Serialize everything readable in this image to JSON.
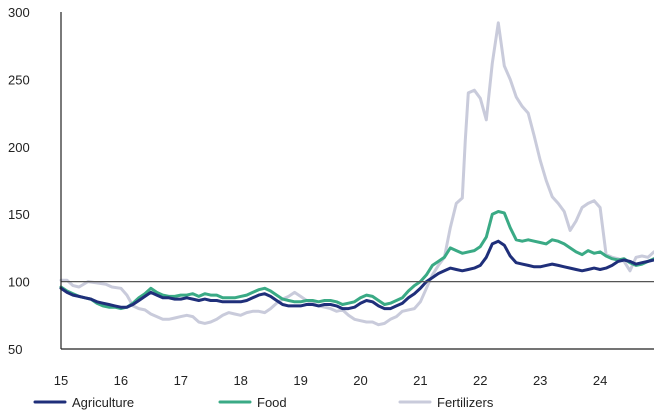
{
  "chart_data": {
    "type": "line",
    "title": "",
    "xlabel": "",
    "ylabel": "",
    "xlim": [
      15,
      24.9
    ],
    "ylim": [
      50,
      300
    ],
    "xticks": [
      15,
      16,
      17,
      18,
      19,
      20,
      21,
      22,
      23,
      24
    ],
    "xtick_labels": [
      "15",
      "16",
      "17",
      "18",
      "19",
      "20",
      "21",
      "22",
      "23",
      "24"
    ],
    "yticks": [
      50,
      100,
      150,
      200,
      250,
      300
    ],
    "ytick_labels": [
      "50",
      "100",
      "150",
      "200",
      "250",
      "300"
    ],
    "reference_line": 100,
    "legend_position": "bottom",
    "grid": false,
    "series": [
      {
        "name": "Fertilizers",
        "color": "#c9cbdb",
        "points": [
          [
            15.0,
            101
          ],
          [
            15.1,
            101
          ],
          [
            15.2,
            97
          ],
          [
            15.3,
            96
          ],
          [
            15.45,
            100
          ],
          [
            15.6,
            99
          ],
          [
            15.75,
            98
          ],
          [
            15.85,
            96
          ],
          [
            16.0,
            95
          ],
          [
            16.1,
            90
          ],
          [
            16.2,
            82
          ],
          [
            16.3,
            80
          ],
          [
            16.4,
            79
          ],
          [
            16.5,
            76
          ],
          [
            16.6,
            74
          ],
          [
            16.7,
            72
          ],
          [
            16.8,
            72
          ],
          [
            16.9,
            73
          ],
          [
            17.0,
            74
          ],
          [
            17.1,
            75
          ],
          [
            17.2,
            74
          ],
          [
            17.3,
            70
          ],
          [
            17.4,
            69
          ],
          [
            17.5,
            70
          ],
          [
            17.6,
            72
          ],
          [
            17.7,
            75
          ],
          [
            17.8,
            77
          ],
          [
            17.9,
            76
          ],
          [
            18.0,
            75
          ],
          [
            18.1,
            77
          ],
          [
            18.2,
            78
          ],
          [
            18.3,
            78
          ],
          [
            18.4,
            77
          ],
          [
            18.5,
            80
          ],
          [
            18.6,
            84
          ],
          [
            18.7,
            87
          ],
          [
            18.8,
            89
          ],
          [
            18.9,
            92
          ],
          [
            19.0,
            89
          ],
          [
            19.1,
            86
          ],
          [
            19.2,
            84
          ],
          [
            19.3,
            82
          ],
          [
            19.4,
            81
          ],
          [
            19.5,
            80
          ],
          [
            19.6,
            78
          ],
          [
            19.7,
            79
          ],
          [
            19.8,
            75
          ],
          [
            19.9,
            72
          ],
          [
            20.0,
            71
          ],
          [
            20.1,
            70
          ],
          [
            20.2,
            70
          ],
          [
            20.3,
            68
          ],
          [
            20.4,
            69
          ],
          [
            20.5,
            72
          ],
          [
            20.6,
            74
          ],
          [
            20.7,
            78
          ],
          [
            20.8,
            79
          ],
          [
            20.9,
            80
          ],
          [
            21.0,
            85
          ],
          [
            21.1,
            95
          ],
          [
            21.2,
            105
          ],
          [
            21.3,
            112
          ],
          [
            21.4,
            118
          ],
          [
            21.5,
            140
          ],
          [
            21.6,
            158
          ],
          [
            21.7,
            162
          ],
          [
            21.75,
            205
          ],
          [
            21.8,
            240
          ],
          [
            21.9,
            242
          ],
          [
            22.0,
            236
          ],
          [
            22.1,
            220
          ],
          [
            22.2,
            262
          ],
          [
            22.3,
            292
          ],
          [
            22.4,
            260
          ],
          [
            22.5,
            250
          ],
          [
            22.6,
            237
          ],
          [
            22.7,
            230
          ],
          [
            22.8,
            225
          ],
          [
            22.9,
            208
          ],
          [
            23.0,
            190
          ],
          [
            23.1,
            175
          ],
          [
            23.2,
            163
          ],
          [
            23.3,
            158
          ],
          [
            23.4,
            152
          ],
          [
            23.5,
            138
          ],
          [
            23.6,
            145
          ],
          [
            23.7,
            155
          ],
          [
            23.8,
            158
          ],
          [
            23.9,
            160
          ],
          [
            24.0,
            155
          ],
          [
            24.1,
            120
          ],
          [
            24.2,
            118
          ],
          [
            24.3,
            117
          ],
          [
            24.4,
            115
          ],
          [
            24.5,
            108
          ],
          [
            24.6,
            118
          ],
          [
            24.7,
            119
          ],
          [
            24.8,
            118
          ],
          [
            24.9,
            122
          ]
        ]
      },
      {
        "name": "Food",
        "color": "#3aaa85",
        "points": [
          [
            15.0,
            96
          ],
          [
            15.1,
            93
          ],
          [
            15.2,
            91
          ],
          [
            15.3,
            89
          ],
          [
            15.4,
            88
          ],
          [
            15.5,
            87
          ],
          [
            15.6,
            84
          ],
          [
            15.7,
            82
          ],
          [
            15.8,
            81
          ],
          [
            15.9,
            81
          ],
          [
            16.0,
            80
          ],
          [
            16.1,
            81
          ],
          [
            16.2,
            84
          ],
          [
            16.3,
            88
          ],
          [
            16.4,
            91
          ],
          [
            16.5,
            95
          ],
          [
            16.6,
            92
          ],
          [
            16.7,
            90
          ],
          [
            16.8,
            89
          ],
          [
            16.9,
            89
          ],
          [
            17.0,
            90
          ],
          [
            17.1,
            90
          ],
          [
            17.2,
            91
          ],
          [
            17.3,
            89
          ],
          [
            17.4,
            91
          ],
          [
            17.5,
            90
          ],
          [
            17.6,
            90
          ],
          [
            17.7,
            88
          ],
          [
            17.8,
            88
          ],
          [
            17.9,
            88
          ],
          [
            18.0,
            89
          ],
          [
            18.1,
            90
          ],
          [
            18.2,
            92
          ],
          [
            18.3,
            94
          ],
          [
            18.4,
            95
          ],
          [
            18.5,
            93
          ],
          [
            18.6,
            90
          ],
          [
            18.7,
            87
          ],
          [
            18.8,
            86
          ],
          [
            18.9,
            85
          ],
          [
            19.0,
            85
          ],
          [
            19.1,
            86
          ],
          [
            19.2,
            86
          ],
          [
            19.3,
            85
          ],
          [
            19.4,
            86
          ],
          [
            19.5,
            86
          ],
          [
            19.6,
            85
          ],
          [
            19.7,
            83
          ],
          [
            19.8,
            84
          ],
          [
            19.9,
            85
          ],
          [
            20.0,
            88
          ],
          [
            20.1,
            90
          ],
          [
            20.2,
            89
          ],
          [
            20.3,
            86
          ],
          [
            20.4,
            83
          ],
          [
            20.5,
            84
          ],
          [
            20.6,
            86
          ],
          [
            20.7,
            88
          ],
          [
            20.8,
            93
          ],
          [
            20.9,
            97
          ],
          [
            21.0,
            100
          ],
          [
            21.1,
            105
          ],
          [
            21.2,
            112
          ],
          [
            21.3,
            115
          ],
          [
            21.4,
            118
          ],
          [
            21.5,
            125
          ],
          [
            21.6,
            123
          ],
          [
            21.7,
            121
          ],
          [
            21.8,
            122
          ],
          [
            21.9,
            123
          ],
          [
            22.0,
            126
          ],
          [
            22.1,
            133
          ],
          [
            22.2,
            150
          ],
          [
            22.3,
            152
          ],
          [
            22.4,
            151
          ],
          [
            22.5,
            140
          ],
          [
            22.6,
            131
          ],
          [
            22.7,
            130
          ],
          [
            22.8,
            131
          ],
          [
            22.9,
            130
          ],
          [
            23.0,
            129
          ],
          [
            23.1,
            128
          ],
          [
            23.2,
            131
          ],
          [
            23.3,
            130
          ],
          [
            23.4,
            128
          ],
          [
            23.5,
            125
          ],
          [
            23.6,
            122
          ],
          [
            23.7,
            120
          ],
          [
            23.8,
            123
          ],
          [
            23.9,
            121
          ],
          [
            24.0,
            122
          ],
          [
            24.1,
            119
          ],
          [
            24.2,
            117
          ],
          [
            24.3,
            116
          ],
          [
            24.4,
            117
          ],
          [
            24.5,
            114
          ],
          [
            24.6,
            112
          ],
          [
            24.7,
            113
          ],
          [
            24.8,
            115
          ],
          [
            24.9,
            117
          ]
        ]
      },
      {
        "name": "Agriculture",
        "color": "#1f2f7a",
        "points": [
          [
            15.0,
            95
          ],
          [
            15.1,
            92
          ],
          [
            15.2,
            90
          ],
          [
            15.3,
            89
          ],
          [
            15.4,
            88
          ],
          [
            15.5,
            87
          ],
          [
            15.6,
            85
          ],
          [
            15.7,
            84
          ],
          [
            15.8,
            83
          ],
          [
            15.9,
            82
          ],
          [
            16.0,
            81
          ],
          [
            16.1,
            81
          ],
          [
            16.2,
            83
          ],
          [
            16.3,
            86
          ],
          [
            16.4,
            89
          ],
          [
            16.5,
            92
          ],
          [
            16.6,
            90
          ],
          [
            16.7,
            88
          ],
          [
            16.8,
            88
          ],
          [
            16.9,
            87
          ],
          [
            17.0,
            87
          ],
          [
            17.1,
            88
          ],
          [
            17.2,
            87
          ],
          [
            17.3,
            86
          ],
          [
            17.4,
            87
          ],
          [
            17.5,
            86
          ],
          [
            17.6,
            86
          ],
          [
            17.7,
            85
          ],
          [
            17.8,
            85
          ],
          [
            17.9,
            85
          ],
          [
            18.0,
            85
          ],
          [
            18.1,
            86
          ],
          [
            18.2,
            88
          ],
          [
            18.3,
            90
          ],
          [
            18.4,
            91
          ],
          [
            18.5,
            89
          ],
          [
            18.6,
            86
          ],
          [
            18.7,
            83
          ],
          [
            18.8,
            82
          ],
          [
            18.9,
            82
          ],
          [
            19.0,
            82
          ],
          [
            19.1,
            83
          ],
          [
            19.2,
            83
          ],
          [
            19.3,
            82
          ],
          [
            19.4,
            83
          ],
          [
            19.5,
            83
          ],
          [
            19.6,
            82
          ],
          [
            19.7,
            80
          ],
          [
            19.8,
            80
          ],
          [
            19.9,
            81
          ],
          [
            20.0,
            84
          ],
          [
            20.1,
            86
          ],
          [
            20.2,
            85
          ],
          [
            20.3,
            82
          ],
          [
            20.4,
            80
          ],
          [
            20.5,
            80
          ],
          [
            20.6,
            82
          ],
          [
            20.7,
            84
          ],
          [
            20.8,
            88
          ],
          [
            20.9,
            91
          ],
          [
            21.0,
            95
          ],
          [
            21.1,
            100
          ],
          [
            21.2,
            103
          ],
          [
            21.3,
            106
          ],
          [
            21.4,
            108
          ],
          [
            21.5,
            110
          ],
          [
            21.6,
            109
          ],
          [
            21.7,
            108
          ],
          [
            21.8,
            109
          ],
          [
            21.9,
            110
          ],
          [
            22.0,
            112
          ],
          [
            22.1,
            118
          ],
          [
            22.2,
            128
          ],
          [
            22.3,
            130
          ],
          [
            22.4,
            127
          ],
          [
            22.5,
            119
          ],
          [
            22.6,
            114
          ],
          [
            22.7,
            113
          ],
          [
            22.8,
            112
          ],
          [
            22.9,
            111
          ],
          [
            23.0,
            111
          ],
          [
            23.1,
            112
          ],
          [
            23.2,
            113
          ],
          [
            23.3,
            112
          ],
          [
            23.4,
            111
          ],
          [
            23.5,
            110
          ],
          [
            23.6,
            109
          ],
          [
            23.7,
            108
          ],
          [
            23.8,
            109
          ],
          [
            23.9,
            110
          ],
          [
            24.0,
            109
          ],
          [
            24.1,
            110
          ],
          [
            24.2,
            112
          ],
          [
            24.3,
            115
          ],
          [
            24.4,
            116
          ],
          [
            24.5,
            115
          ],
          [
            24.6,
            113
          ],
          [
            24.7,
            114
          ],
          [
            24.8,
            115
          ],
          [
            24.9,
            116
          ]
        ]
      }
    ],
    "legend": [
      {
        "name": "Agriculture",
        "color": "#1f2f7a"
      },
      {
        "name": "Food",
        "color": "#3aaa85"
      },
      {
        "name": "Fertilizers",
        "color": "#c9cbdb"
      }
    ]
  }
}
